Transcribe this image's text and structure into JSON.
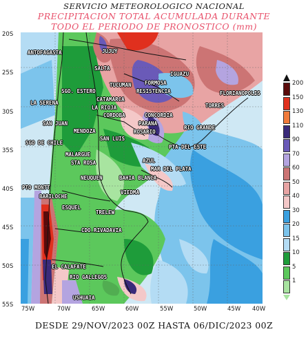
{
  "header": {
    "line1": "SERVICIO METEOROLOGICO NACIONAL",
    "line2": "PRECIPITACION TOTAL ACUMULADA DURANTE",
    "line3": "TODO EL PERIODO DE PRONOSTICO (mm)"
  },
  "lat_labels": [
    "20S",
    "25S",
    "30S",
    "35S",
    "40S",
    "45S",
    "50S",
    "55S"
  ],
  "lon_labels": [
    "75W",
    "70W",
    "65W",
    "60W",
    "55W",
    "50W",
    "45W",
    "40W"
  ],
  "cities": [
    "ANTOFAGASTA",
    "SALTA",
    "IGUAZU",
    "FORMOSA",
    "RESISTENCIA",
    "FLORIANOPOLIS",
    "SGO. ESTERO",
    "CATAMARCA",
    "LA RIOJA",
    "LA SERENA",
    "CORDOBA",
    "CONCORDIA",
    "SAN JUAN",
    "MENDOZA",
    "SAN LUIS",
    "ROSARIO",
    "RIO GRANDE",
    "TORRES",
    "SGO DE CHILE",
    "PTA DEL ESTE",
    "MALARGUE",
    "STA ROSA",
    "AZUL",
    "MAR DEL PLATA",
    "NEUQUEN",
    "BAHIA BLANCA",
    "PTO MONTT",
    "BARILOCHE",
    "VIEDMA",
    "ESQUEL",
    "TRELEW",
    "CDO RIVADAVIA",
    "EL CALAFATE",
    "RIO GALLEGOS",
    "USHUAIA",
    "TUCUMAN",
    "JUJUY",
    "PARANA"
  ],
  "legend": {
    "values": [
      "200",
      "150",
      "130",
      "110",
      "90",
      "70",
      "60",
      "50",
      "40",
      "30",
      "20",
      "15",
      "10",
      "5",
      "1"
    ],
    "colors": [
      "#5a0a0a",
      "#e0301e",
      "#f07a3a",
      "#3a2a7a",
      "#6a5ab8",
      "#b4a4e0",
      "#cc7474",
      "#e8a4a4",
      "#f4c8c8",
      "#3aa0e0",
      "#7cc4ec",
      "#b4dcf4",
      "#1e9c3a",
      "#5cc85c",
      "#a8e4a0"
    ]
  },
  "footer": "DESDE 29/NOV/2023 00Z HASTA 06/DIC/2023 00Z"
}
